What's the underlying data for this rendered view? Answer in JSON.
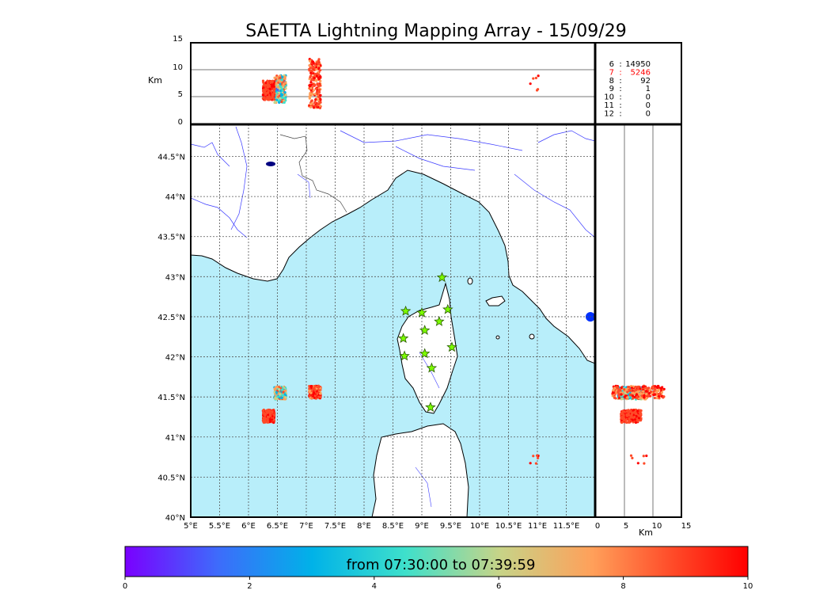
{
  "title": "SAETTA Lightning Mapping Array - 15/09/29",
  "altitude_panel": {
    "ylabel": "Km",
    "yticks": [
      "0",
      "5",
      "10",
      "15"
    ]
  },
  "side_panel": {
    "xlabel": "Km",
    "xticks": [
      "0",
      "5",
      "10",
      "15"
    ]
  },
  "map": {
    "lon_labels": [
      "5°E",
      "5.5°E",
      "6°E",
      "6.5°E",
      "7°E",
      "7.5°E",
      "8°E",
      "8.5°E",
      "9°E",
      "9.5°E",
      "10°E",
      "10.5°E",
      "11°E",
      "11.5°E"
    ],
    "lat_labels": [
      "40°N",
      "40.5°N",
      "41°N",
      "41.5°N",
      "42°N",
      "42.5°N",
      "43°N",
      "43.5°N",
      "44°N",
      "44.5°N"
    ],
    "sea_color": "#b8eefa",
    "land_color": "#ffffff",
    "river_color": "#3a3aff"
  },
  "station_counts": [
    {
      "stations": "6",
      "count": "14950",
      "color": "#000000"
    },
    {
      "stations": "7",
      "count": "5246",
      "color": "#ff0000"
    },
    {
      "stations": "8",
      "count": "92",
      "color": "#000000"
    },
    {
      "stations": "9",
      "count": "1",
      "color": "#000000"
    },
    {
      "stations": "10",
      "count": "0",
      "color": "#000000"
    },
    {
      "stations": "11",
      "count": "0",
      "color": "#000000"
    },
    {
      "stations": "12",
      "count": "0",
      "color": "#000000"
    }
  ],
  "colorbar": {
    "label": "from 07:30:00 to 07:39:59",
    "ticks": [
      "0",
      "2",
      "4",
      "6",
      "8",
      "10"
    ],
    "colors": [
      "#7a00ff",
      "#3d6cfb",
      "#00b2e8",
      "#3ee0cb",
      "#c6d488",
      "#ffa05a",
      "#ff4a28",
      "#ff0000"
    ]
  },
  "stations_markers": [
    {
      "lon": 9.35,
      "lat": 42.99
    },
    {
      "lon": 8.72,
      "lat": 42.57
    },
    {
      "lon": 9.0,
      "lat": 42.55
    },
    {
      "lon": 9.45,
      "lat": 42.59
    },
    {
      "lon": 9.3,
      "lat": 42.44
    },
    {
      "lon": 9.05,
      "lat": 42.33
    },
    {
      "lon": 8.68,
      "lat": 42.23
    },
    {
      "lon": 9.52,
      "lat": 42.12
    },
    {
      "lon": 8.7,
      "lat": 42.01
    },
    {
      "lon": 9.05,
      "lat": 42.04
    },
    {
      "lon": 9.17,
      "lat": 41.86
    },
    {
      "lon": 9.15,
      "lat": 41.37
    }
  ],
  "lightning_clusters": [
    {
      "lon": 6.55,
      "lat": 41.55,
      "alt_min": 4,
      "alt_max": 9,
      "time": [
        2,
        9
      ]
    },
    {
      "lon": 7.15,
      "lat": 41.56,
      "alt_min": 3,
      "alt_max": 12,
      "time": [
        7,
        10
      ]
    },
    {
      "lon": 6.35,
      "lat": 41.26,
      "alt_min": 4.5,
      "alt_max": 8,
      "time": [
        8,
        10
      ]
    },
    {
      "lon": 10.95,
      "lat": 40.72,
      "alt_min": 6,
      "alt_max": 9,
      "time": [
        8,
        10
      ]
    }
  ]
}
